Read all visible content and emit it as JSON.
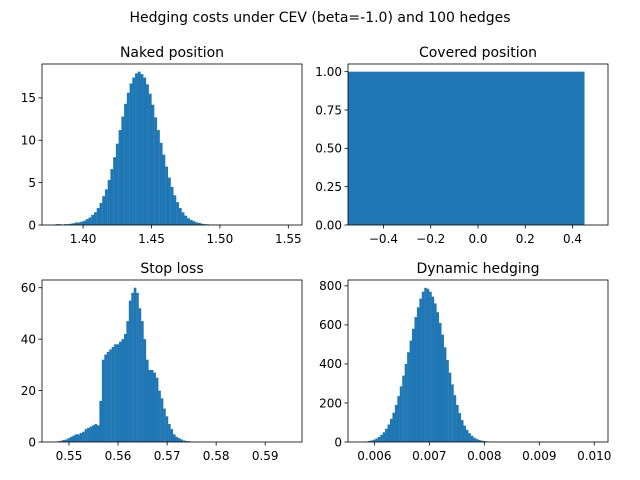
{
  "figure_title": "Hedging costs under CEV (beta=-1.0) and 100 hedges",
  "chart_data": [
    {
      "type": "bar",
      "subtype": "histogram",
      "title": "Naked position",
      "color": "#1f77b4",
      "xlim": [
        1.37,
        1.56
      ],
      "ylim": [
        0,
        19
      ],
      "xticks": [
        {
          "v": 1.4,
          "label": "1.40"
        },
        {
          "v": 1.45,
          "label": "1.45"
        },
        {
          "v": 1.5,
          "label": "1.50"
        },
        {
          "v": 1.55,
          "label": "1.55"
        }
      ],
      "yticks": [
        {
          "v": 0,
          "label": "0"
        },
        {
          "v": 5,
          "label": "5"
        },
        {
          "v": 10,
          "label": "10"
        },
        {
          "v": 15,
          "label": "15"
        }
      ],
      "bins": {
        "start": 1.378,
        "width": 0.002
      },
      "values": [
        0.05,
        0.1,
        0.1,
        0.05,
        0.1,
        0.1,
        0.15,
        0.2,
        0.3,
        0.3,
        0.4,
        0.5,
        0.7,
        0.9,
        1.2,
        1.5,
        2.0,
        2.6,
        3.4,
        4.2,
        5.3,
        6.6,
        8.0,
        9.6,
        11.2,
        12.8,
        14.3,
        15.6,
        16.7,
        17.4,
        17.9,
        18.1,
        17.8,
        17.4,
        16.6,
        15.5,
        14.2,
        12.7,
        11.2,
        9.7,
        8.3,
        6.9,
        5.6,
        4.5,
        3.5,
        2.7,
        2.0,
        1.5,
        1.1,
        0.8,
        0.6,
        0.45,
        0.3,
        0.25,
        0.15,
        0.1,
        0.08,
        0.05,
        0.05,
        0.03,
        0.03,
        0.02,
        0.02,
        0.02,
        0.01,
        0.01,
        0.01,
        0.01,
        0.01,
        0.01,
        0.01,
        0.01,
        0.01,
        0.01,
        0.01,
        0.01,
        0.01,
        0.01,
        0.01,
        0.01,
        0.01,
        0.01,
        0.01,
        0.01,
        0.01,
        0.01,
        0.01,
        0.01
      ]
    },
    {
      "type": "bar",
      "subtype": "histogram",
      "title": "Covered position",
      "color": "#1f77b4",
      "xlim": [
        -0.55,
        0.55
      ],
      "ylim": [
        0,
        1.05
      ],
      "xticks": [
        {
          "v": -0.4,
          "label": "−0.4"
        },
        {
          "v": -0.2,
          "label": "−0.2"
        },
        {
          "v": 0.0,
          "label": "0.0"
        },
        {
          "v": 0.2,
          "label": "0.2"
        },
        {
          "v": 0.4,
          "label": "0.4"
        }
      ],
      "yticks": [
        {
          "v": 0,
          "label": "0.00"
        },
        {
          "v": 0.25,
          "label": "0.25"
        },
        {
          "v": 0.5,
          "label": "0.50"
        },
        {
          "v": 0.75,
          "label": "0.75"
        },
        {
          "v": 1.0,
          "label": "1.00"
        }
      ],
      "bins": {
        "start": -0.55,
        "width": 1.0
      },
      "values": [
        1.0
      ]
    },
    {
      "type": "bar",
      "subtype": "histogram",
      "title": "Stop loss",
      "color": "#1f77b4",
      "xlim": [
        0.5445,
        0.5975
      ],
      "ylim": [
        0,
        63
      ],
      "xticks": [
        {
          "v": 0.55,
          "label": "0.55"
        },
        {
          "v": 0.56,
          "label": "0.56"
        },
        {
          "v": 0.57,
          "label": "0.57"
        },
        {
          "v": 0.58,
          "label": "0.58"
        },
        {
          "v": 0.59,
          "label": "0.59"
        }
      ],
      "yticks": [
        {
          "v": 0,
          "label": "0"
        },
        {
          "v": 20,
          "label": "20"
        },
        {
          "v": 40,
          "label": "40"
        },
        {
          "v": 60,
          "label": "60"
        }
      ],
      "bins": {
        "start": 0.5472,
        "width": 0.0005
      },
      "values": [
        0.2,
        0.3,
        0.5,
        0.8,
        1,
        1.5,
        2,
        2.5,
        3,
        3,
        3.5,
        4,
        5,
        5.5,
        6,
        6.5,
        7,
        6.5,
        16,
        32,
        34,
        35,
        36,
        37,
        38,
        38,
        39,
        40,
        42,
        47,
        55,
        58,
        60,
        58,
        52,
        47,
        40,
        32,
        28,
        28,
        27,
        25,
        20,
        17,
        13,
        10,
        7,
        5,
        3,
        2,
        1.5,
        1,
        0.6,
        0.4,
        0.3,
        0.2,
        0.1,
        0.1
      ]
    },
    {
      "type": "bar",
      "subtype": "histogram",
      "title": "Dynamic hedging",
      "color": "#1f77b4",
      "xlim": [
        0.00552,
        0.01025
      ],
      "ylim": [
        0,
        830
      ],
      "xticks": [
        {
          "v": 0.006,
          "label": "0.006"
        },
        {
          "v": 0.007,
          "label": "0.007"
        },
        {
          "v": 0.008,
          "label": "0.008"
        },
        {
          "v": 0.009,
          "label": "0.009"
        },
        {
          "v": 0.01,
          "label": "0.010"
        }
      ],
      "yticks": [
        {
          "v": 0,
          "label": "0"
        },
        {
          "v": 200,
          "label": "200"
        },
        {
          "v": 400,
          "label": "400"
        },
        {
          "v": 600,
          "label": "600"
        },
        {
          "v": 800,
          "label": "800"
        }
      ],
      "bins": {
        "start": 0.00575,
        "width": 4.45e-05
      },
      "values": [
        1,
        2,
        3,
        5,
        8,
        12,
        18,
        26,
        37,
        50,
        68,
        90,
        118,
        150,
        190,
        235,
        285,
        340,
        400,
        460,
        520,
        580,
        640,
        690,
        735,
        770,
        790,
        785,
        770,
        745,
        710,
        665,
        610,
        550,
        485,
        420,
        355,
        295,
        240,
        190,
        148,
        112,
        84,
        62,
        45,
        32,
        22,
        15,
        10,
        7,
        5,
        3,
        2,
        1.5,
        1,
        1,
        1,
        1,
        1,
        1,
        1,
        1,
        1,
        1,
        1,
        1,
        1,
        1,
        1,
        1,
        1,
        1,
        1,
        1,
        1,
        1,
        1,
        1,
        1,
        1,
        1,
        1,
        1,
        1,
        1,
        1,
        1,
        1,
        1,
        1,
        1,
        1,
        1,
        1,
        1,
        1,
        1,
        1,
        1,
        1
      ]
    }
  ]
}
